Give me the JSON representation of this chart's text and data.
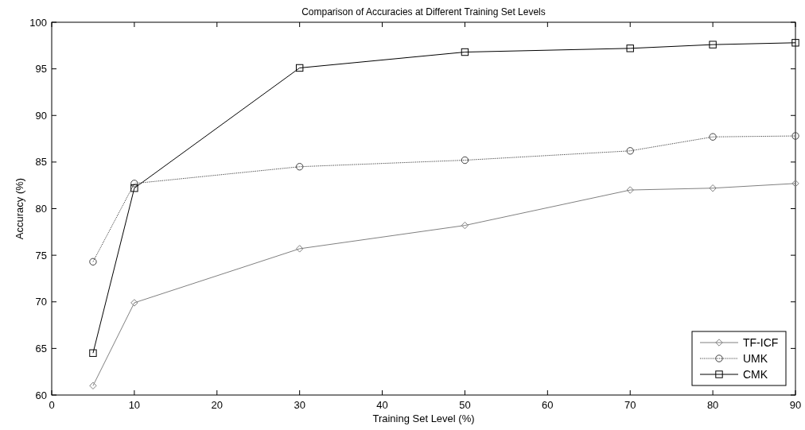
{
  "chart_data": {
    "type": "line",
    "title": "Comparison of Accuracies at Different Training Set Levels",
    "xlabel": "Training Set Level (%)",
    "ylabel": "Accuracy (%)",
    "x": [
      5,
      10,
      30,
      50,
      70,
      80,
      90
    ],
    "series": [
      {
        "name": "TF-ICF",
        "color": "#808080",
        "marker": "diamond",
        "line_style": "solid",
        "values": [
          61.0,
          69.9,
          75.7,
          78.2,
          82.0,
          82.2,
          82.7
        ]
      },
      {
        "name": "UMK",
        "color": "#404040",
        "marker": "circle",
        "line_style": "dotted",
        "values": [
          74.3,
          82.7,
          84.5,
          85.2,
          86.2,
          87.7,
          87.8
        ]
      },
      {
        "name": "CMK",
        "color": "#000000",
        "marker": "square",
        "line_style": "solid",
        "values": [
          64.5,
          82.2,
          95.1,
          96.8,
          97.2,
          97.6,
          97.8
        ]
      }
    ],
    "xlim": [
      0,
      90
    ],
    "xticks": [
      0,
      10,
      20,
      30,
      40,
      50,
      60,
      70,
      80,
      90
    ],
    "ylim": [
      60,
      100
    ],
    "yticks": [
      60,
      65,
      70,
      75,
      80,
      85,
      90,
      95,
      100
    ],
    "grid": false,
    "legend": "bottom right"
  }
}
